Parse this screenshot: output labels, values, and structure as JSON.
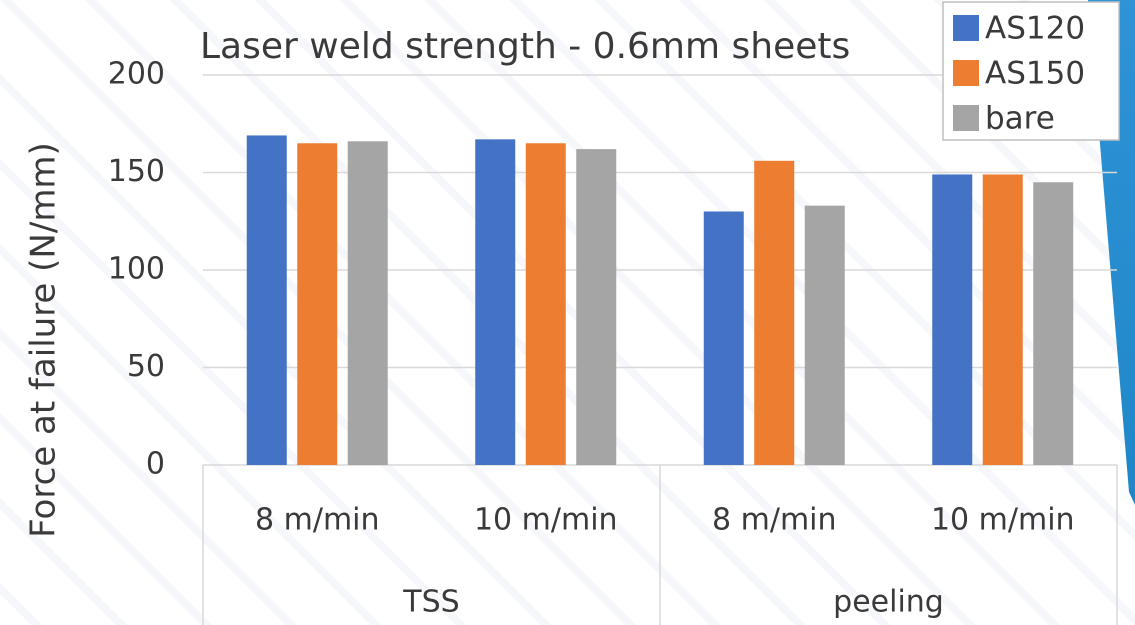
{
  "chart_data": {
    "type": "bar",
    "title": "Laser weld strength - 0.6mm sheets",
    "y_label": "Force at failure (N/mm)",
    "categories": [
      "8 m/min",
      "10 m/min",
      "8 m/min",
      "10 m/min"
    ],
    "groups": [
      "TSS",
      "peeling"
    ],
    "series": [
      {
        "name": "AS120",
        "color": "#4472c4",
        "values": [
          169,
          167,
          130,
          149
        ]
      },
      {
        "name": "AS150",
        "color": "#ed7d31",
        "values": [
          165,
          165,
          156,
          149
        ]
      },
      {
        "name": "bare",
        "color": "#a5a5a5",
        "values": [
          166,
          162,
          133,
          145
        ]
      }
    ],
    "ylim": [
      0,
      200
    ],
    "yticks": [
      0,
      50,
      100,
      150,
      200
    ],
    "grid": true,
    "legend": "top-right"
  }
}
